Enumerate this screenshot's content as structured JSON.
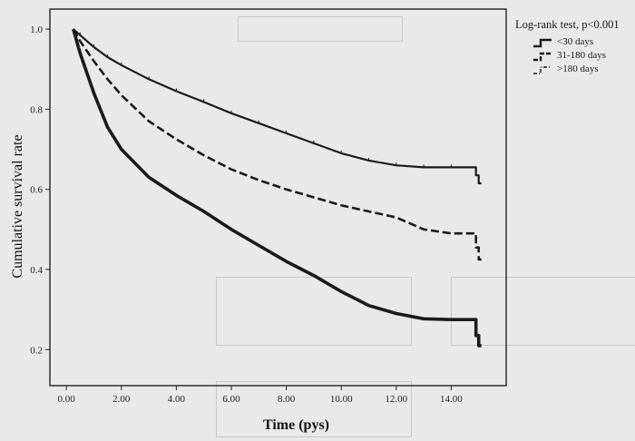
{
  "chart_data": {
    "type": "line",
    "title": "",
    "xlabel": "Time (pys)",
    "ylabel": "Cumulative survival rate",
    "xlim": [
      -0.6,
      16.0
    ],
    "ylim": [
      0.11,
      1.05
    ],
    "xticks": [
      0,
      2,
      4,
      6,
      8,
      10,
      12,
      14
    ],
    "xtick_labels": [
      "0.00",
      "2.00",
      "4.00",
      "6.00",
      "8.00",
      "10.00",
      "12.00",
      "14.00"
    ],
    "yticks": [
      0.2,
      0.4,
      0.6,
      0.8,
      1.0
    ],
    "ytick_labels": [
      "0.2",
      "0.4",
      "0.6",
      "0.8",
      "1.0"
    ],
    "legend": {
      "title": "Log-rank test, p<0.001",
      "position": "top-right"
    },
    "series": [
      {
        "name": "<30 days",
        "style": "solid-fine",
        "color": "#1a1a1a",
        "x": [
          0.25,
          0.5,
          1,
          1.5,
          2,
          3,
          4,
          5,
          6,
          7,
          8,
          9,
          10,
          11,
          12,
          13,
          14,
          14.9,
          14.9,
          15.0,
          15.0,
          15.1
        ],
        "y": [
          1.0,
          0.985,
          0.955,
          0.93,
          0.91,
          0.875,
          0.845,
          0.818,
          0.79,
          0.765,
          0.74,
          0.715,
          0.69,
          0.672,
          0.66,
          0.655,
          0.655,
          0.655,
          0.635,
          0.635,
          0.615,
          0.615
        ]
      },
      {
        "name": "31-180 days",
        "style": "dashed",
        "color": "#1a1a1a",
        "x": [
          0.25,
          0.5,
          1,
          1.5,
          2,
          3,
          4,
          5,
          6,
          7,
          8,
          9,
          10,
          11,
          12,
          13,
          14,
          14.9,
          14.9,
          15.0,
          15.0,
          15.1
        ],
        "y": [
          1.0,
          0.97,
          0.92,
          0.875,
          0.835,
          0.77,
          0.725,
          0.685,
          0.65,
          0.623,
          0.6,
          0.58,
          0.56,
          0.545,
          0.53,
          0.5,
          0.49,
          0.49,
          0.455,
          0.455,
          0.425,
          0.425
        ]
      },
      {
        "name": ">180 days",
        "style": "solid-bold",
        "color": "#1a1a1a",
        "x": [
          0.25,
          0.5,
          1,
          1.5,
          2,
          3,
          4,
          5,
          6,
          7,
          8,
          9,
          10,
          11,
          12,
          13,
          14,
          14.9,
          14.9,
          15.0,
          15.0,
          15.1
        ],
        "y": [
          1.0,
          0.94,
          0.84,
          0.755,
          0.7,
          0.63,
          0.585,
          0.545,
          0.5,
          0.46,
          0.42,
          0.385,
          0.345,
          0.31,
          0.29,
          0.277,
          0.275,
          0.275,
          0.235,
          0.235,
          0.21,
          0.21
        ]
      }
    ]
  }
}
